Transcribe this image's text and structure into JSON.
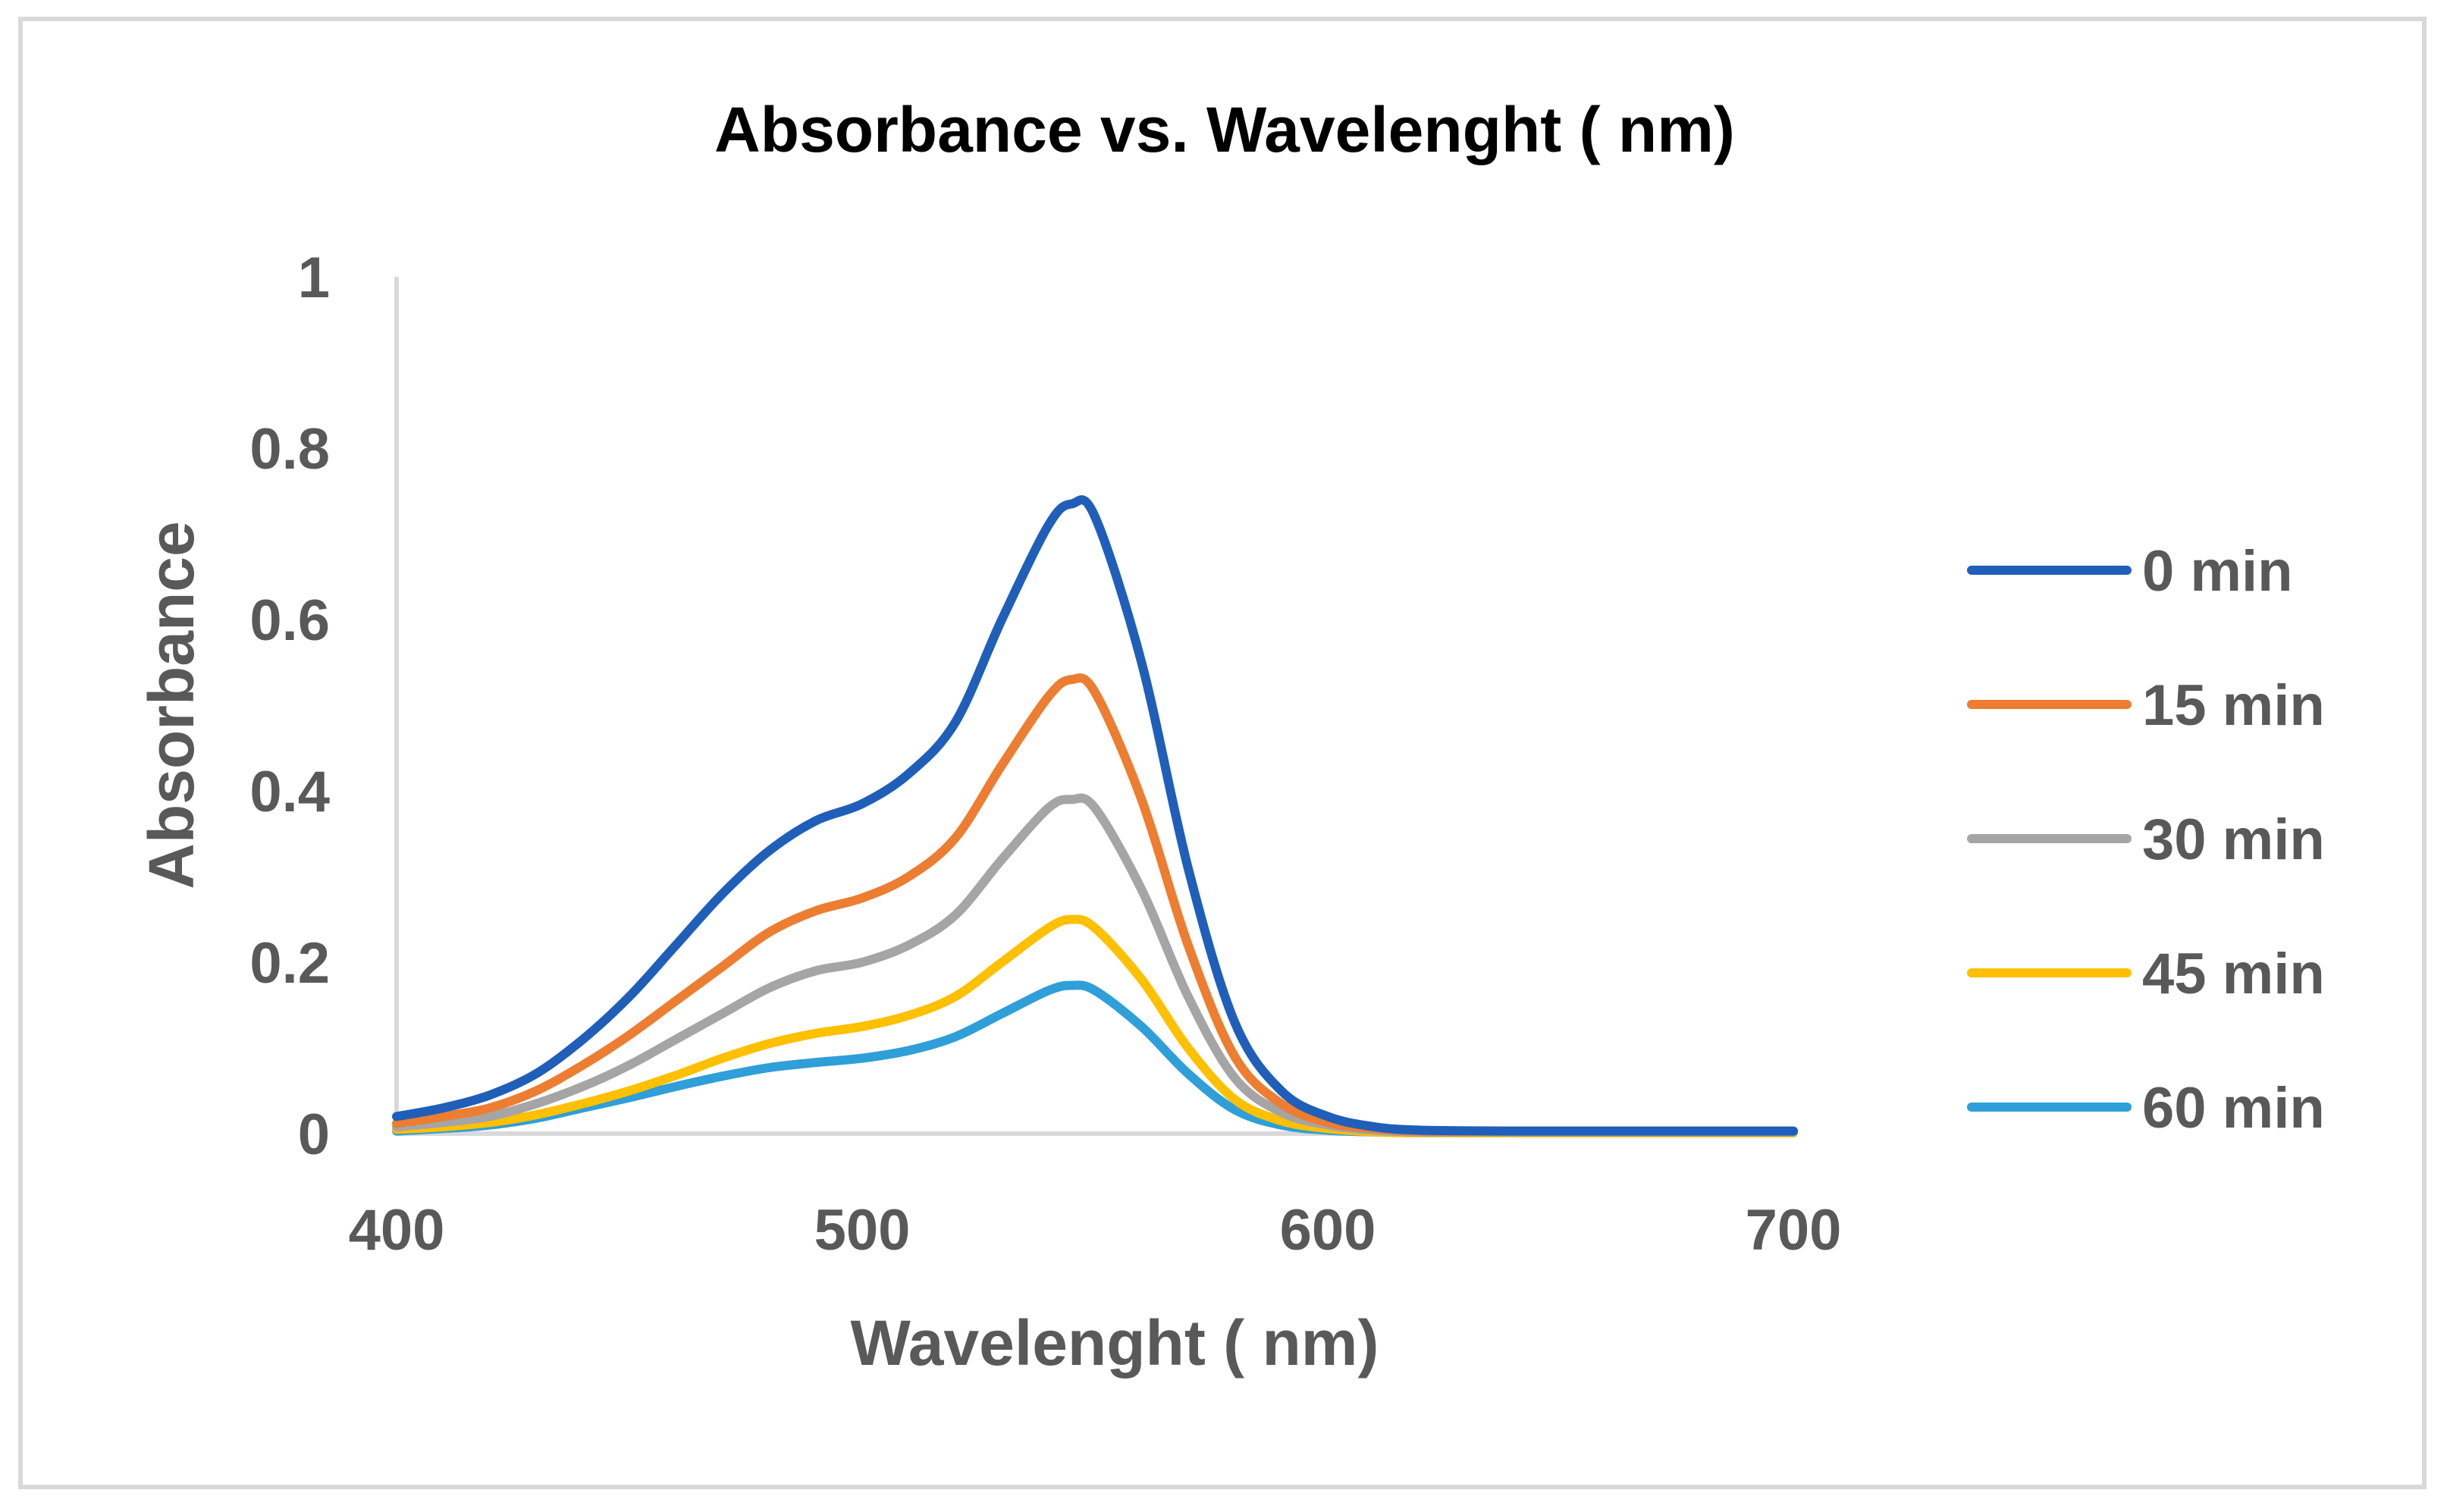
{
  "chart_data": {
    "type": "line",
    "title": "Absorbance vs. Wavelenght ( nm)",
    "xlabel": "Wavelenght ( nm)",
    "ylabel": "Absorbance",
    "xlim": [
      400,
      700
    ],
    "ylim": [
      0,
      1
    ],
    "x_ticks": [
      "400",
      "500",
      "600",
      "700"
    ],
    "y_ticks": [
      "0",
      "0.2",
      "0.4",
      "0.6",
      "0.8",
      "1"
    ],
    "grid": false,
    "legend_position": "right",
    "x": [
      400,
      410,
      420,
      430,
      440,
      450,
      460,
      470,
      480,
      490,
      500,
      510,
      520,
      530,
      540,
      545,
      550,
      560,
      570,
      580,
      590,
      600,
      610,
      620,
      640,
      660,
      680,
      700
    ],
    "series": [
      {
        "name": "0 min",
        "color": "#1f5fb9",
        "values": [
          0.02,
          0.03,
          0.045,
          0.07,
          0.11,
          0.16,
          0.22,
          0.28,
          0.33,
          0.365,
          0.385,
          0.42,
          0.48,
          0.6,
          0.71,
          0.735,
          0.72,
          0.55,
          0.31,
          0.13,
          0.05,
          0.02,
          0.008,
          0.004,
          0.003,
          0.003,
          0.003,
          0.003
        ]
      },
      {
        "name": "15 min",
        "color": "#ed7d31",
        "values": [
          0.012,
          0.02,
          0.03,
          0.05,
          0.08,
          0.115,
          0.155,
          0.195,
          0.235,
          0.26,
          0.275,
          0.3,
          0.345,
          0.43,
          0.51,
          0.53,
          0.515,
          0.39,
          0.22,
          0.09,
          0.035,
          0.013,
          0.006,
          0.003,
          0.003,
          0.003,
          0.003,
          0.003
        ]
      },
      {
        "name": "30 min",
        "color": "#a5a5a5",
        "values": [
          0.008,
          0.013,
          0.02,
          0.035,
          0.055,
          0.08,
          0.11,
          0.14,
          0.17,
          0.19,
          0.2,
          0.22,
          0.255,
          0.32,
          0.38,
          0.39,
          0.38,
          0.285,
          0.16,
          0.065,
          0.025,
          0.01,
          0.004,
          0.002,
          0.002,
          0.002,
          0.002,
          0.002
        ]
      },
      {
        "name": "45 min",
        "color": "#ffc000",
        "values": [
          0.005,
          0.008,
          0.013,
          0.022,
          0.035,
          0.05,
          0.068,
          0.088,
          0.105,
          0.117,
          0.125,
          0.138,
          0.16,
          0.2,
          0.24,
          0.25,
          0.24,
          0.18,
          0.1,
          0.04,
          0.015,
          0.006,
          0.002,
          0.001,
          0.001,
          0.001,
          0.001,
          0.001
        ]
      },
      {
        "name": "60 min",
        "color": "#2e9fd8",
        "values": [
          0.003,
          0.006,
          0.01,
          0.018,
          0.03,
          0.042,
          0.055,
          0.067,
          0.077,
          0.083,
          0.088,
          0.097,
          0.113,
          0.14,
          0.167,
          0.173,
          0.167,
          0.125,
          0.07,
          0.028,
          0.01,
          0.004,
          0.002,
          0.001,
          0.001,
          0.001,
          0.001,
          0.001
        ]
      }
    ]
  }
}
